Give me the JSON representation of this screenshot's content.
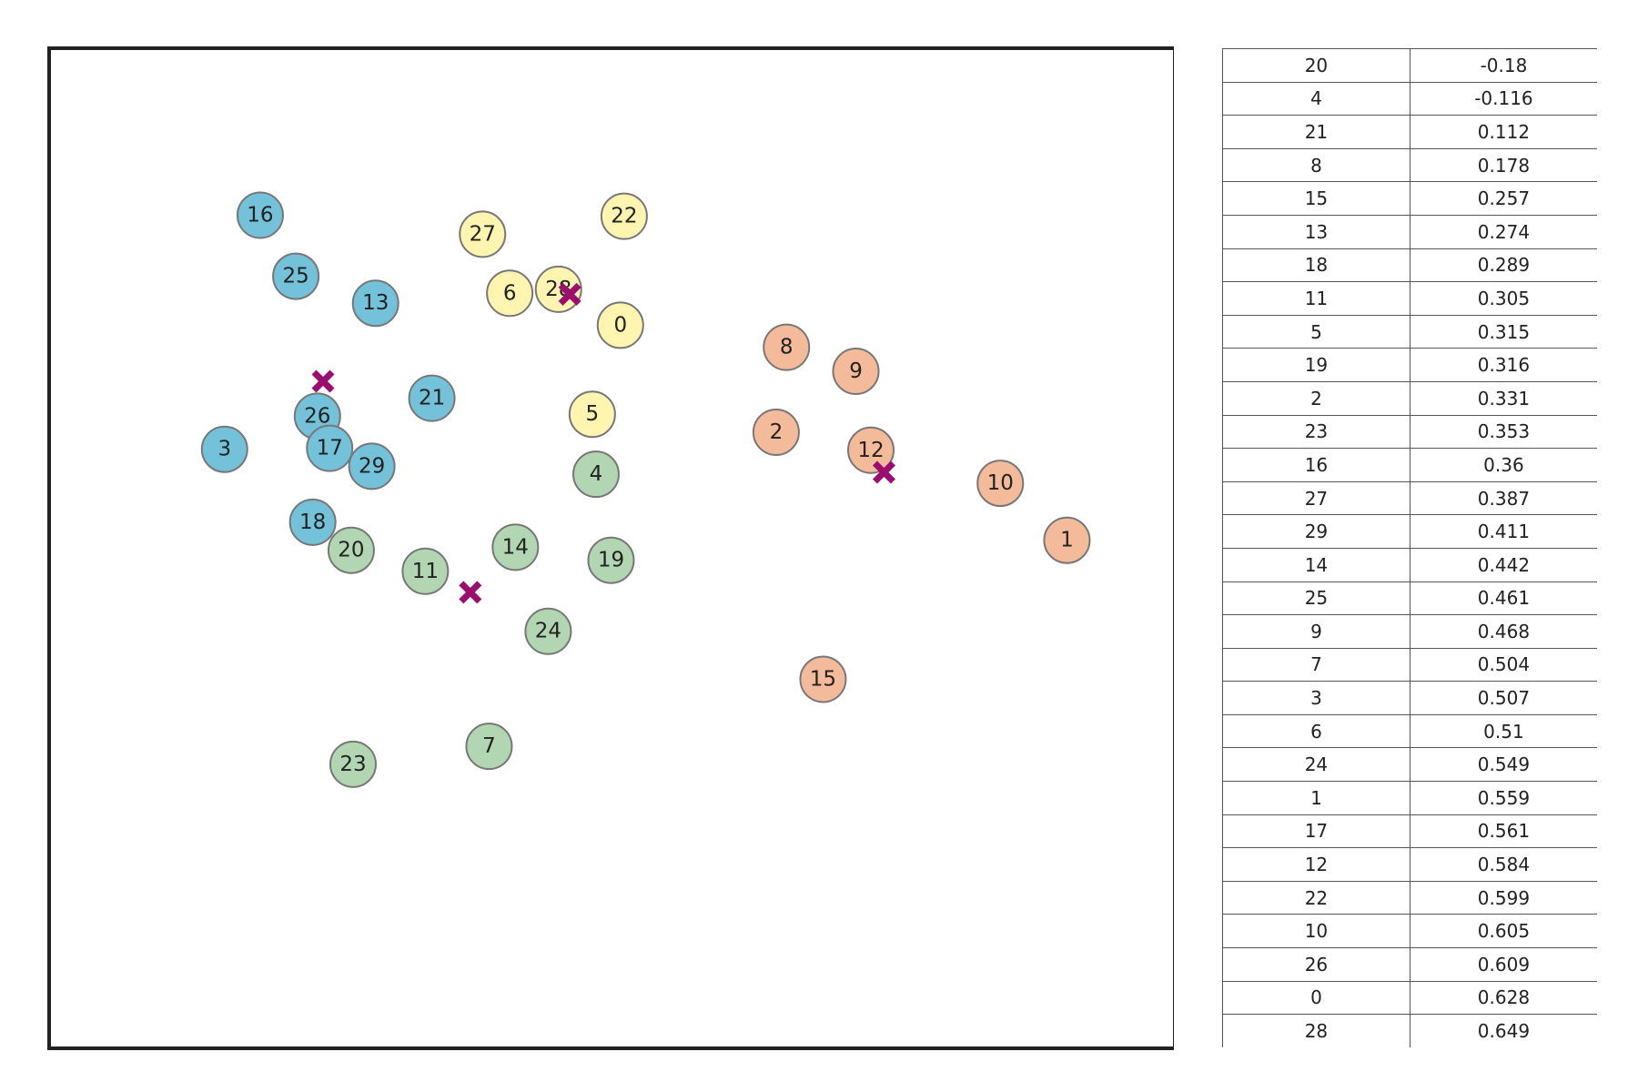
{
  "chart_data": [
    {
      "type": "scatter",
      "title": "",
      "xlabel": "",
      "ylabel": "",
      "axes_visible": false,
      "grid": false,
      "frame": true,
      "series": [
        {
          "cluster": 0,
          "color": "#74c2d9",
          "points": [
            {
              "label": "16",
              "x": 1.75,
              "y": 6.33
            },
            {
              "label": "25",
              "x": 2.13,
              "y": 5.72
            },
            {
              "label": "13",
              "x": 2.98,
              "y": 5.45
            },
            {
              "label": "21",
              "x": 3.58,
              "y": 4.5
            },
            {
              "label": "26",
              "x": 2.36,
              "y": 4.32
            },
            {
              "label": "17",
              "x": 2.49,
              "y": 4.0
            },
            {
              "label": "3",
              "x": 1.37,
              "y": 3.99
            },
            {
              "label": "29",
              "x": 2.94,
              "y": 3.82
            },
            {
              "label": "18",
              "x": 2.31,
              "y": 3.26
            }
          ]
        },
        {
          "cluster": 1,
          "color": "#fff4b0",
          "points": [
            {
              "label": "27",
              "x": 4.12,
              "y": 6.14
            },
            {
              "label": "22",
              "x": 5.63,
              "y": 6.32
            },
            {
              "label": "6",
              "x": 4.41,
              "y": 5.55
            },
            {
              "label": "28",
              "x": 4.93,
              "y": 5.59
            },
            {
              "label": "0",
              "x": 5.59,
              "y": 5.23
            },
            {
              "label": "5",
              "x": 5.29,
              "y": 4.34
            }
          ]
        },
        {
          "cluster": 2,
          "color": "#b2d6b2",
          "points": [
            {
              "label": "4",
              "x": 5.33,
              "y": 3.74
            },
            {
              "label": "20",
              "x": 2.72,
              "y": 2.98
            },
            {
              "label": "14",
              "x": 4.47,
              "y": 3.01
            },
            {
              "label": "19",
              "x": 5.49,
              "y": 2.88
            },
            {
              "label": "11",
              "x": 3.51,
              "y": 2.77
            },
            {
              "label": "24",
              "x": 4.82,
              "y": 2.17
            },
            {
              "label": "7",
              "x": 4.19,
              "y": 1.02
            },
            {
              "label": "23",
              "x": 2.74,
              "y": 0.84
            }
          ]
        },
        {
          "cluster": 3,
          "color": "#f4bb9b",
          "points": [
            {
              "label": "8",
              "x": 7.36,
              "y": 5.01
            },
            {
              "label": "9",
              "x": 8.1,
              "y": 4.77
            },
            {
              "label": "2",
              "x": 7.25,
              "y": 4.16
            },
            {
              "label": "12",
              "x": 8.26,
              "y": 3.98
            },
            {
              "label": "10",
              "x": 9.64,
              "y": 3.65
            },
            {
              "label": "1",
              "x": 10.35,
              "y": 3.08
            },
            {
              "label": "15",
              "x": 7.75,
              "y": 1.69
            }
          ]
        }
      ],
      "centroids": {
        "color": "#9b0d6e",
        "marker": "x",
        "points": [
          {
            "x": 2.42,
            "y": 4.67
          },
          {
            "x": 5.05,
            "y": 5.54
          },
          {
            "x": 3.99,
            "y": 2.56
          },
          {
            "x": 8.4,
            "y": 3.76
          }
        ]
      },
      "xlim": [
        -0.5,
        11.5
      ],
      "ylim": [
        -2.0,
        8.0
      ]
    },
    {
      "type": "table",
      "columns": [
        "",
        ""
      ],
      "rows": [
        [
          "20",
          "-0.18"
        ],
        [
          "4",
          "-0.116"
        ],
        [
          "21",
          "0.112"
        ],
        [
          "8",
          "0.178"
        ],
        [
          "15",
          "0.257"
        ],
        [
          "13",
          "0.274"
        ],
        [
          "18",
          "0.289"
        ],
        [
          "11",
          "0.305"
        ],
        [
          "5",
          "0.315"
        ],
        [
          "19",
          "0.316"
        ],
        [
          "2",
          "0.331"
        ],
        [
          "23",
          "0.353"
        ],
        [
          "16",
          "0.36"
        ],
        [
          "27",
          "0.387"
        ],
        [
          "29",
          "0.411"
        ],
        [
          "14",
          "0.442"
        ],
        [
          "25",
          "0.461"
        ],
        [
          "9",
          "0.468"
        ],
        [
          "7",
          "0.504"
        ],
        [
          "3",
          "0.507"
        ],
        [
          "6",
          "0.51"
        ],
        [
          "24",
          "0.549"
        ],
        [
          "1",
          "0.559"
        ],
        [
          "17",
          "0.561"
        ],
        [
          "12",
          "0.584"
        ],
        [
          "22",
          "0.599"
        ],
        [
          "10",
          "0.605"
        ],
        [
          "26",
          "0.609"
        ],
        [
          "0",
          "0.628"
        ],
        [
          "28",
          "0.649"
        ]
      ]
    }
  ]
}
